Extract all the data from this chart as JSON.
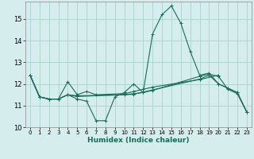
{
  "title": "",
  "xlabel": "Humidex (Indice chaleur)",
  "ylabel": "",
  "background_color": "#d5eeed",
  "grid_color": "#b0d4d4",
  "line_color": "#1a6b5a",
  "xlim": [
    -0.5,
    23.5
  ],
  "ylim": [
    10.0,
    15.8
  ],
  "yticks": [
    10,
    11,
    12,
    13,
    14,
    15
  ],
  "xticks": [
    0,
    1,
    2,
    3,
    4,
    5,
    6,
    7,
    8,
    9,
    10,
    11,
    12,
    13,
    14,
    15,
    16,
    17,
    18,
    19,
    20,
    21,
    22,
    23
  ],
  "lines": [
    {
      "x": [
        0,
        1,
        2,
        3,
        4,
        5,
        6,
        7,
        8,
        9,
        10,
        11,
        12,
        13,
        14,
        15,
        16,
        17,
        18,
        19,
        20,
        21,
        22,
        23
      ],
      "y": [
        12.4,
        11.4,
        11.3,
        11.3,
        11.5,
        11.3,
        11.2,
        10.3,
        10.3,
        11.4,
        11.6,
        12.0,
        11.6,
        14.3,
        15.2,
        15.6,
        14.8,
        13.5,
        12.4,
        12.5,
        12.0,
        11.8,
        11.6,
        10.7
      ]
    },
    {
      "x": [
        0,
        1,
        2,
        3,
        4,
        5,
        6,
        7,
        10,
        11,
        12,
        13,
        18,
        20
      ],
      "y": [
        12.4,
        11.4,
        11.3,
        11.3,
        12.1,
        11.5,
        11.65,
        11.5,
        11.55,
        11.65,
        11.75,
        11.85,
        12.2,
        12.4
      ]
    },
    {
      "x": [
        0,
        1,
        2,
        3,
        4,
        5,
        10,
        11,
        12,
        13,
        18,
        19,
        20,
        21,
        22,
        23
      ],
      "y": [
        12.4,
        11.4,
        11.3,
        11.3,
        11.5,
        11.45,
        11.5,
        11.55,
        11.6,
        11.7,
        12.35,
        12.45,
        12.35,
        11.75,
        11.55,
        10.7
      ]
    },
    {
      "x": [
        0,
        1,
        2,
        3,
        4,
        5,
        10,
        11,
        12,
        13,
        18,
        19,
        20,
        21,
        22,
        23
      ],
      "y": [
        12.4,
        11.4,
        11.3,
        11.3,
        11.5,
        11.42,
        11.5,
        11.52,
        11.62,
        11.72,
        12.22,
        12.4,
        12.0,
        11.8,
        11.6,
        10.7
      ]
    }
  ]
}
